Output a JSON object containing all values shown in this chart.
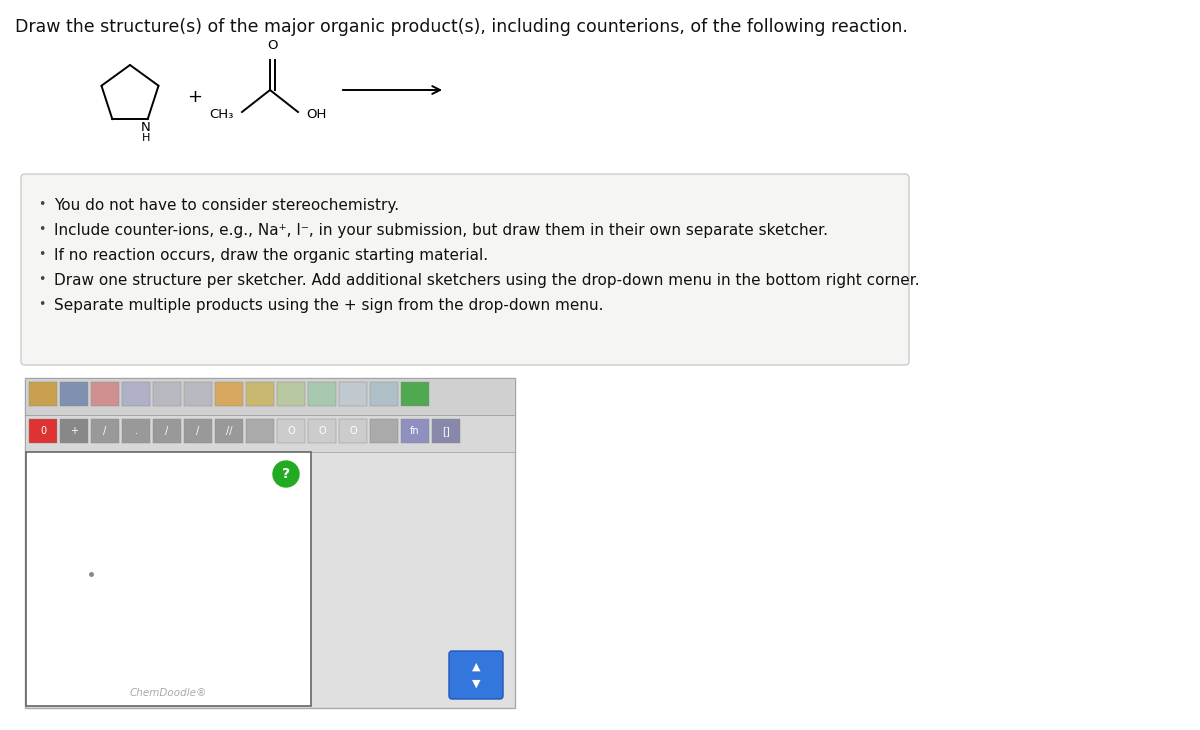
{
  "title": "Draw the structure(s) of the major organic product(s), including counterions, of the following reaction.",
  "title_fontsize": 12.5,
  "bg_color": "#ffffff",
  "outer_bg": "#e8e8e8",
  "bullet_points": [
    "You do not have to consider stereochemistry.",
    "Include counter-ions, e.g., Na⁺, I⁻, in your submission, but draw them in their own separate sketcher.",
    "If no reaction occurs, draw the organic starting material.",
    "Draw one structure per sketcher. Add additional sketchers using the drop-down menu in the bottom right corner.",
    "Separate multiple products using the + sign from the drop-down menu."
  ],
  "bullet_fontsize": 11.0,
  "chemdoodle_label": "ChemDoodle®",
  "info_box_facecolor": "#f5f5f3",
  "info_box_edgecolor": "#cccccc",
  "toolbar_bg": "#d8d8d8",
  "canvas_border": "#666666",
  "panel_bg": "#e0e0e0",
  "panel_border": "#aaaaaa"
}
